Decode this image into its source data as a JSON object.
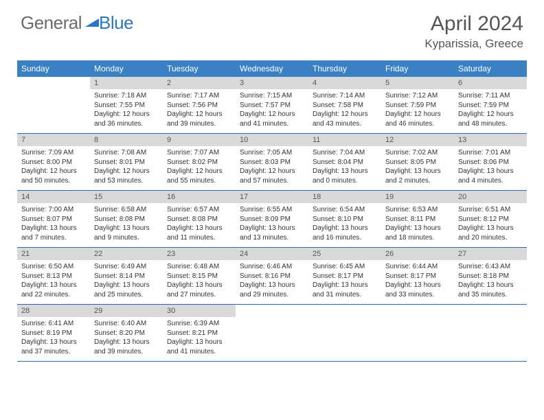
{
  "logo": {
    "text1": "General",
    "text2": "Blue"
  },
  "header": {
    "title": "April 2024",
    "location": "Kyparissia, Greece"
  },
  "colors": {
    "header_bg": "#3a81c4",
    "divider": "#2b6aa8",
    "daynum_bg": "#d9d9d9",
    "logo_gray": "#6b6b6b",
    "logo_blue": "#2b77c0"
  },
  "days_of_week": [
    "Sunday",
    "Monday",
    "Tuesday",
    "Wednesday",
    "Thursday",
    "Friday",
    "Saturday"
  ],
  "weeks": [
    {
      "nums": [
        "",
        "1",
        "2",
        "3",
        "4",
        "5",
        "6"
      ],
      "cells": [
        {
          "empty": true
        },
        {
          "sunrise": "Sunrise: 7:18 AM",
          "sunset": "Sunset: 7:55 PM",
          "day1": "Daylight: 12 hours",
          "day2": "and 36 minutes."
        },
        {
          "sunrise": "Sunrise: 7:17 AM",
          "sunset": "Sunset: 7:56 PM",
          "day1": "Daylight: 12 hours",
          "day2": "and 39 minutes."
        },
        {
          "sunrise": "Sunrise: 7:15 AM",
          "sunset": "Sunset: 7:57 PM",
          "day1": "Daylight: 12 hours",
          "day2": "and 41 minutes."
        },
        {
          "sunrise": "Sunrise: 7:14 AM",
          "sunset": "Sunset: 7:58 PM",
          "day1": "Daylight: 12 hours",
          "day2": "and 43 minutes."
        },
        {
          "sunrise": "Sunrise: 7:12 AM",
          "sunset": "Sunset: 7:59 PM",
          "day1": "Daylight: 12 hours",
          "day2": "and 46 minutes."
        },
        {
          "sunrise": "Sunrise: 7:11 AM",
          "sunset": "Sunset: 7:59 PM",
          "day1": "Daylight: 12 hours",
          "day2": "and 48 minutes."
        }
      ]
    },
    {
      "nums": [
        "7",
        "8",
        "9",
        "10",
        "11",
        "12",
        "13"
      ],
      "cells": [
        {
          "sunrise": "Sunrise: 7:09 AM",
          "sunset": "Sunset: 8:00 PM",
          "day1": "Daylight: 12 hours",
          "day2": "and 50 minutes."
        },
        {
          "sunrise": "Sunrise: 7:08 AM",
          "sunset": "Sunset: 8:01 PM",
          "day1": "Daylight: 12 hours",
          "day2": "and 53 minutes."
        },
        {
          "sunrise": "Sunrise: 7:07 AM",
          "sunset": "Sunset: 8:02 PM",
          "day1": "Daylight: 12 hours",
          "day2": "and 55 minutes."
        },
        {
          "sunrise": "Sunrise: 7:05 AM",
          "sunset": "Sunset: 8:03 PM",
          "day1": "Daylight: 12 hours",
          "day2": "and 57 minutes."
        },
        {
          "sunrise": "Sunrise: 7:04 AM",
          "sunset": "Sunset: 8:04 PM",
          "day1": "Daylight: 13 hours",
          "day2": "and 0 minutes."
        },
        {
          "sunrise": "Sunrise: 7:02 AM",
          "sunset": "Sunset: 8:05 PM",
          "day1": "Daylight: 13 hours",
          "day2": "and 2 minutes."
        },
        {
          "sunrise": "Sunrise: 7:01 AM",
          "sunset": "Sunset: 8:06 PM",
          "day1": "Daylight: 13 hours",
          "day2": "and 4 minutes."
        }
      ]
    },
    {
      "nums": [
        "14",
        "15",
        "16",
        "17",
        "18",
        "19",
        "20"
      ],
      "cells": [
        {
          "sunrise": "Sunrise: 7:00 AM",
          "sunset": "Sunset: 8:07 PM",
          "day1": "Daylight: 13 hours",
          "day2": "and 7 minutes."
        },
        {
          "sunrise": "Sunrise: 6:58 AM",
          "sunset": "Sunset: 8:08 PM",
          "day1": "Daylight: 13 hours",
          "day2": "and 9 minutes."
        },
        {
          "sunrise": "Sunrise: 6:57 AM",
          "sunset": "Sunset: 8:08 PM",
          "day1": "Daylight: 13 hours",
          "day2": "and 11 minutes."
        },
        {
          "sunrise": "Sunrise: 6:55 AM",
          "sunset": "Sunset: 8:09 PM",
          "day1": "Daylight: 13 hours",
          "day2": "and 13 minutes."
        },
        {
          "sunrise": "Sunrise: 6:54 AM",
          "sunset": "Sunset: 8:10 PM",
          "day1": "Daylight: 13 hours",
          "day2": "and 16 minutes."
        },
        {
          "sunrise": "Sunrise: 6:53 AM",
          "sunset": "Sunset: 8:11 PM",
          "day1": "Daylight: 13 hours",
          "day2": "and 18 minutes."
        },
        {
          "sunrise": "Sunrise: 6:51 AM",
          "sunset": "Sunset: 8:12 PM",
          "day1": "Daylight: 13 hours",
          "day2": "and 20 minutes."
        }
      ]
    },
    {
      "nums": [
        "21",
        "22",
        "23",
        "24",
        "25",
        "26",
        "27"
      ],
      "cells": [
        {
          "sunrise": "Sunrise: 6:50 AM",
          "sunset": "Sunset: 8:13 PM",
          "day1": "Daylight: 13 hours",
          "day2": "and 22 minutes."
        },
        {
          "sunrise": "Sunrise: 6:49 AM",
          "sunset": "Sunset: 8:14 PM",
          "day1": "Daylight: 13 hours",
          "day2": "and 25 minutes."
        },
        {
          "sunrise": "Sunrise: 6:48 AM",
          "sunset": "Sunset: 8:15 PM",
          "day1": "Daylight: 13 hours",
          "day2": "and 27 minutes."
        },
        {
          "sunrise": "Sunrise: 6:46 AM",
          "sunset": "Sunset: 8:16 PM",
          "day1": "Daylight: 13 hours",
          "day2": "and 29 minutes."
        },
        {
          "sunrise": "Sunrise: 6:45 AM",
          "sunset": "Sunset: 8:17 PM",
          "day1": "Daylight: 13 hours",
          "day2": "and 31 minutes."
        },
        {
          "sunrise": "Sunrise: 6:44 AM",
          "sunset": "Sunset: 8:17 PM",
          "day1": "Daylight: 13 hours",
          "day2": "and 33 minutes."
        },
        {
          "sunrise": "Sunrise: 6:43 AM",
          "sunset": "Sunset: 8:18 PM",
          "day1": "Daylight: 13 hours",
          "day2": "and 35 minutes."
        }
      ]
    },
    {
      "nums": [
        "28",
        "29",
        "30",
        "",
        "",
        "",
        ""
      ],
      "cells": [
        {
          "sunrise": "Sunrise: 6:41 AM",
          "sunset": "Sunset: 8:19 PM",
          "day1": "Daylight: 13 hours",
          "day2": "and 37 minutes."
        },
        {
          "sunrise": "Sunrise: 6:40 AM",
          "sunset": "Sunset: 8:20 PM",
          "day1": "Daylight: 13 hours",
          "day2": "and 39 minutes."
        },
        {
          "sunrise": "Sunrise: 6:39 AM",
          "sunset": "Sunset: 8:21 PM",
          "day1": "Daylight: 13 hours",
          "day2": "and 41 minutes."
        },
        {
          "empty": true
        },
        {
          "empty": true
        },
        {
          "empty": true
        },
        {
          "empty": true
        }
      ]
    }
  ]
}
